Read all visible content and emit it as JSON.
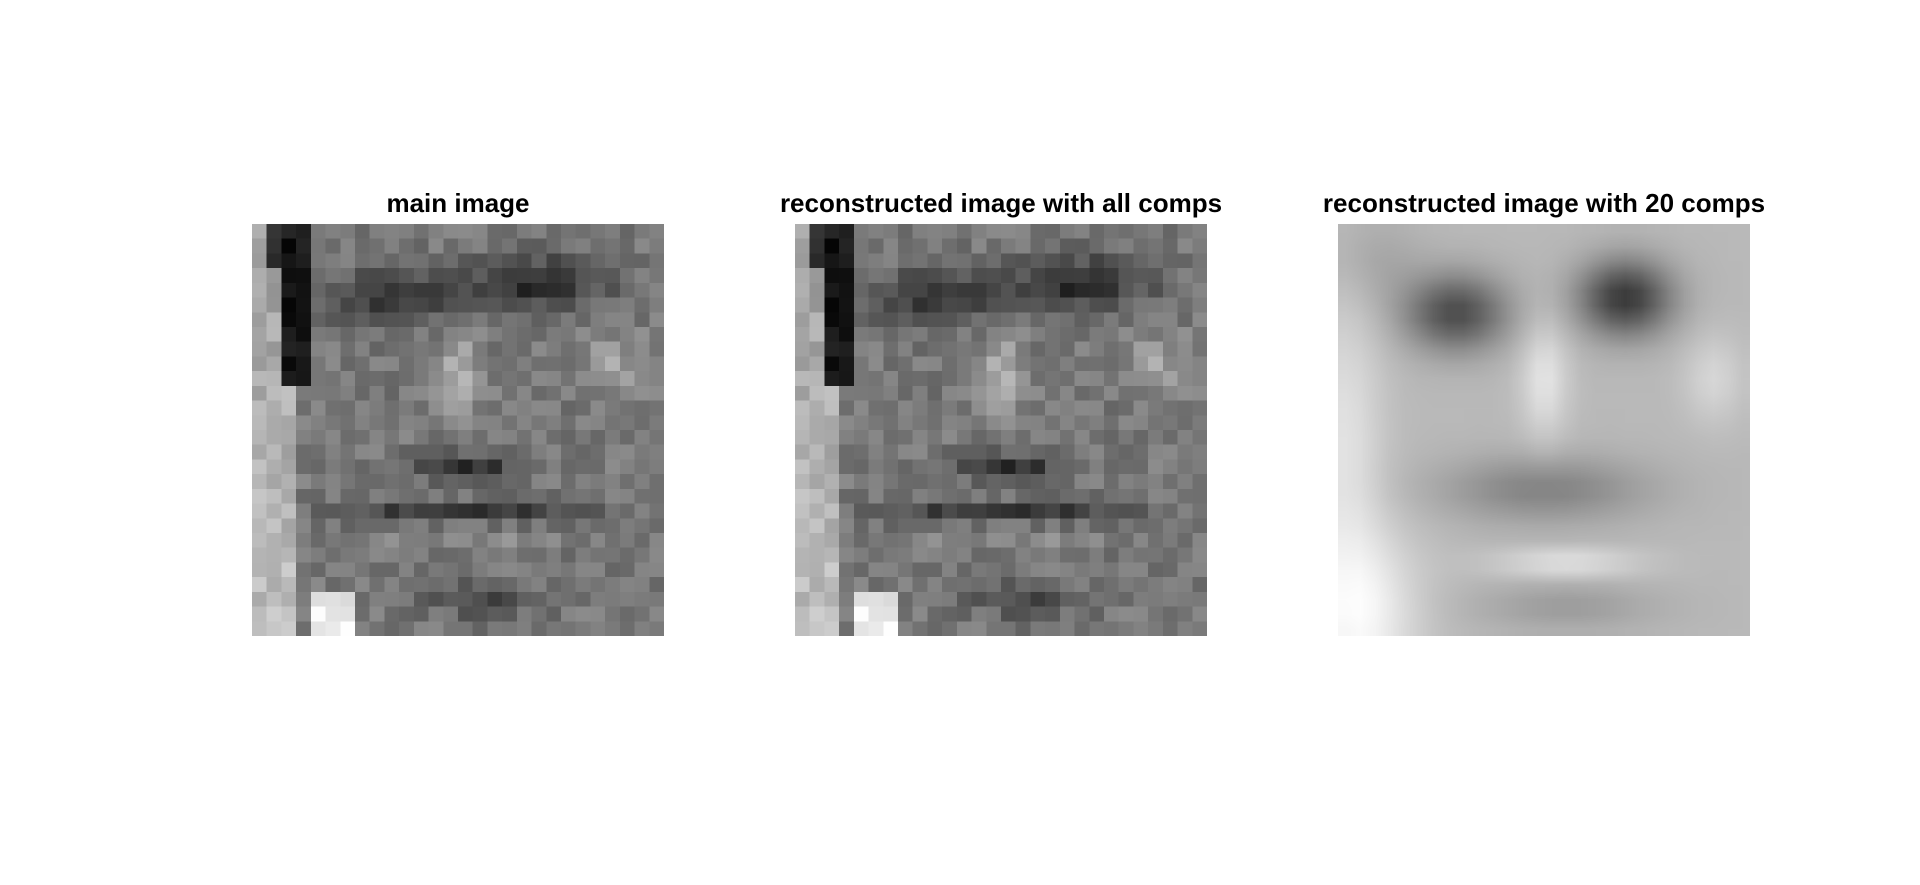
{
  "figure": {
    "panels": [
      {
        "title": "main image"
      },
      {
        "title": "reconstructed image with all comps"
      },
      {
        "title": "reconstructed image with 20 comps"
      }
    ]
  }
}
